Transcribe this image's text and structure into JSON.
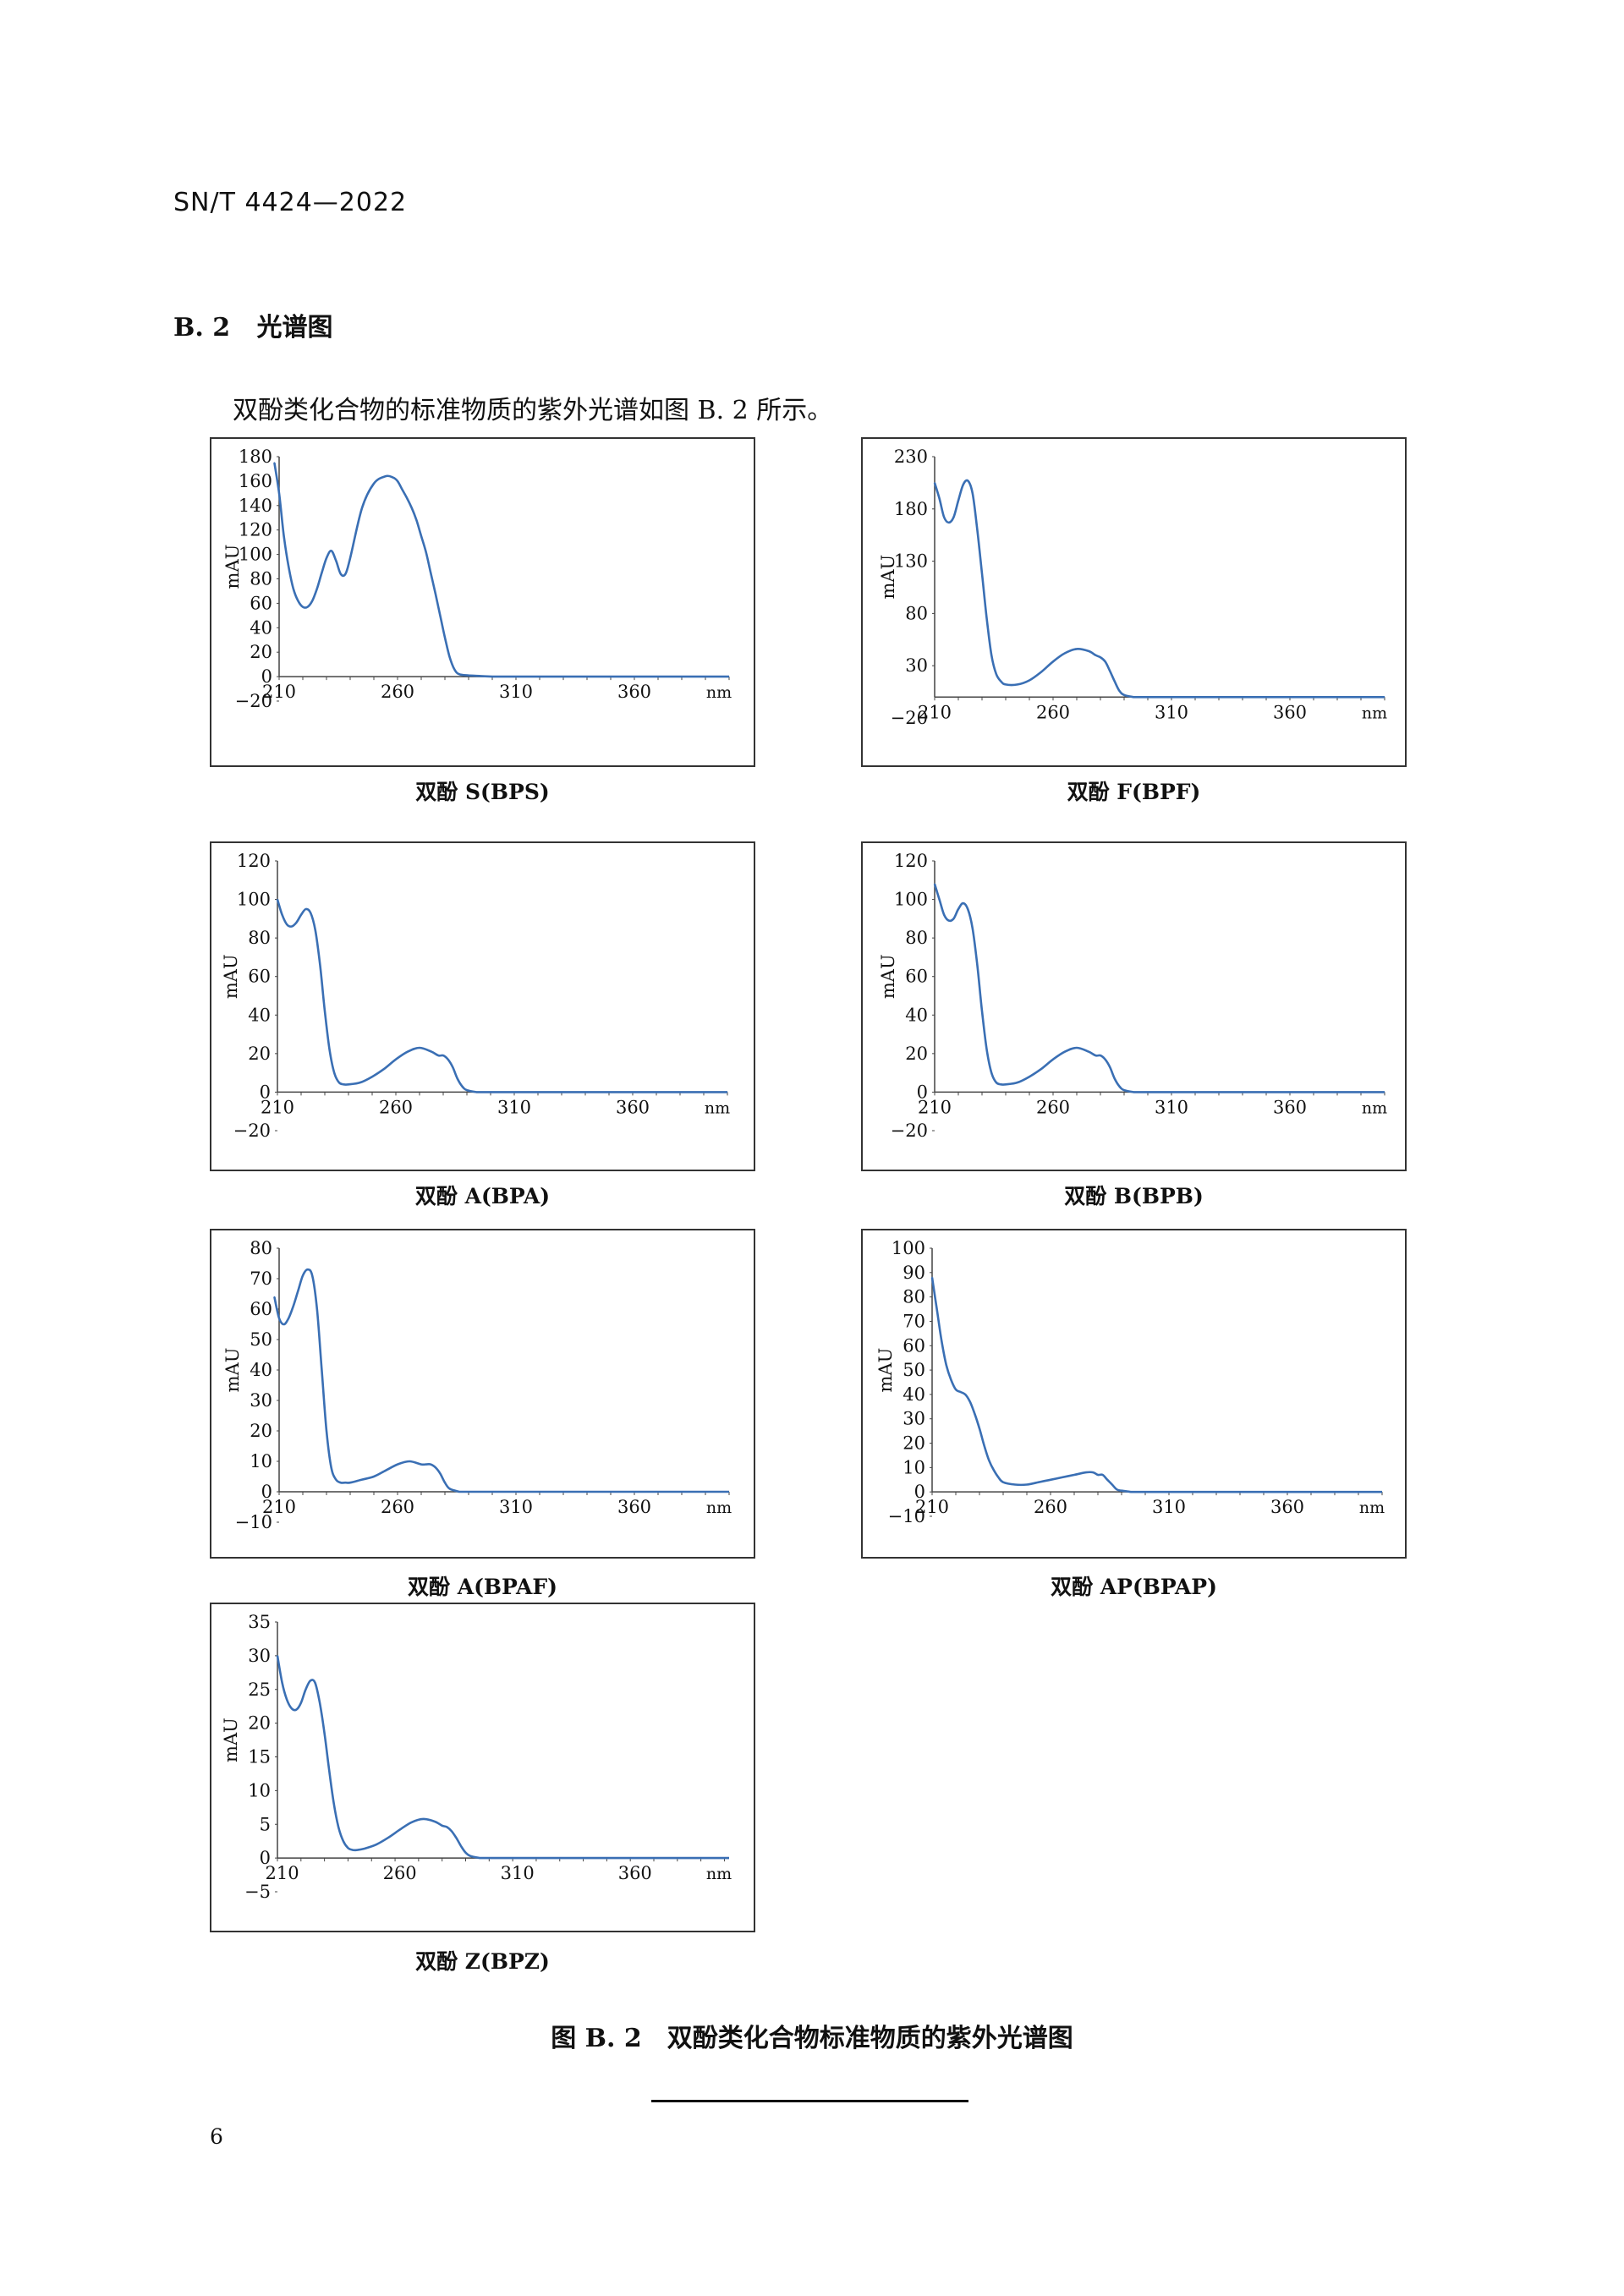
{
  "header": {
    "doc_code": "SN/T 4424—2022"
  },
  "section": {
    "number": "B. 2",
    "title": "光谱图",
    "intro": "双酚类化合物的标准物质的紫外光谱如图 B. 2 所示。"
  },
  "figure": {
    "caption": "图 B. 2　双酚类化合物标准物质的紫外光谱图"
  },
  "footer": {
    "page_number": "6"
  },
  "chart_data": [
    {
      "type": "line",
      "caption": "双酚 S(BPS)",
      "ylabel": "mAU",
      "xunit": "nm",
      "x_ticks": [
        210,
        260,
        310,
        360
      ],
      "y_ticks": [
        -20,
        0,
        20,
        40,
        60,
        80,
        100,
        120,
        140,
        160,
        180
      ],
      "xlim": [
        210,
        400
      ],
      "ylim": [
        -20,
        180
      ],
      "series": [
        {
          "color": "#3a6fb4",
          "x": [
            208,
            210,
            212,
            214,
            216,
            218,
            220,
            222,
            224,
            226,
            228,
            230,
            232,
            234,
            236,
            238,
            240,
            245,
            250,
            255,
            258,
            260,
            262,
            264,
            266,
            268,
            270,
            272,
            274,
            276,
            278,
            280,
            282,
            284,
            286,
            290,
            295,
            300
          ],
          "y": [
            175,
            150,
            115,
            90,
            72,
            62,
            57,
            57,
            62,
            72,
            85,
            97,
            103,
            95,
            84,
            84,
            97,
            138,
            158,
            164,
            163,
            160,
            153,
            146,
            138,
            128,
            115,
            102,
            85,
            68,
            50,
            32,
            16,
            6,
            2,
            1,
            0.5,
            0
          ]
        }
      ]
    },
    {
      "type": "line",
      "caption": "双酚 F(BPF)",
      "ylabel": "mAU",
      "xunit": "nm",
      "x_ticks": [
        210,
        260,
        310,
        360
      ],
      "y_ticks": [
        -20,
        30,
        80,
        130,
        180,
        230
      ],
      "xlim": [
        210,
        400
      ],
      "ylim": [
        -20,
        230
      ],
      "series": [
        {
          "color": "#3a6fb4",
          "x": [
            210,
            212,
            214,
            216,
            218,
            220,
            222,
            224,
            226,
            228,
            230,
            232,
            234,
            236,
            238,
            240,
            245,
            250,
            255,
            260,
            265,
            270,
            275,
            278,
            280,
            282,
            284,
            286,
            288,
            290,
            294
          ],
          "y": [
            205,
            190,
            172,
            167,
            172,
            188,
            203,
            207,
            195,
            160,
            118,
            75,
            40,
            22,
            15,
            12,
            12,
            16,
            24,
            34,
            42,
            46,
            44,
            40,
            38,
            34,
            25,
            15,
            6,
            2,
            0
          ]
        }
      ]
    },
    {
      "type": "line",
      "caption": "双酚 A(BPA)",
      "ylabel": "mAU",
      "xunit": "nm",
      "x_ticks": [
        210,
        260,
        310,
        360
      ],
      "y_ticks": [
        -20,
        0,
        20,
        40,
        60,
        80,
        100,
        120
      ],
      "xlim": [
        210,
        400
      ],
      "ylim": [
        -20,
        120
      ],
      "series": [
        {
          "color": "#3a6fb4",
          "x": [
            210,
            212,
            214,
            216,
            218,
            220,
            222,
            224,
            226,
            228,
            230,
            232,
            234,
            236,
            238,
            240,
            245,
            250,
            255,
            260,
            265,
            270,
            275,
            278,
            280,
            282,
            284,
            286,
            288,
            290,
            294
          ],
          "y": [
            100,
            92,
            87,
            86,
            88,
            92,
            95,
            93,
            84,
            66,
            42,
            22,
            10,
            5,
            4,
            4,
            5,
            8,
            12,
            17,
            21,
            23,
            21,
            19,
            19,
            17,
            13,
            7,
            3,
            1,
            0
          ]
        }
      ]
    },
    {
      "type": "line",
      "caption": "双酚 B(BPB)",
      "ylabel": "mAU",
      "xunit": "nm",
      "x_ticks": [
        210,
        260,
        310,
        360
      ],
      "y_ticks": [
        -20,
        0,
        20,
        40,
        60,
        80,
        100,
        120
      ],
      "xlim": [
        210,
        400
      ],
      "ylim": [
        -20,
        120
      ],
      "series": [
        {
          "color": "#3a6fb4",
          "x": [
            210,
            212,
            214,
            216,
            218,
            220,
            222,
            224,
            226,
            228,
            230,
            232,
            234,
            236,
            238,
            240,
            245,
            250,
            255,
            260,
            265,
            270,
            275,
            278,
            280,
            282,
            284,
            286,
            288,
            290,
            294
          ],
          "y": [
            108,
            100,
            92,
            89,
            90,
            95,
            98,
            95,
            85,
            66,
            42,
            22,
            10,
            5,
            4,
            4,
            5,
            8,
            12,
            17,
            21,
            23,
            21,
            19,
            19,
            17,
            13,
            7,
            3,
            1,
            0
          ]
        }
      ]
    },
    {
      "type": "line",
      "caption": "双酚 A(BPAF)",
      "ylabel": "mAU",
      "xunit": "nm",
      "x_ticks": [
        210,
        260,
        310,
        360
      ],
      "y_ticks": [
        -10,
        0,
        10,
        20,
        30,
        40,
        50,
        60,
        70,
        80
      ],
      "xlim": [
        210,
        400
      ],
      "ylim": [
        -10,
        80
      ],
      "series": [
        {
          "color": "#3a6fb4",
          "x": [
            208,
            210,
            212,
            214,
            216,
            218,
            220,
            222,
            224,
            226,
            228,
            230,
            232,
            234,
            236,
            238,
            240,
            245,
            250,
            255,
            260,
            265,
            270,
            272,
            274,
            276,
            278,
            280,
            282,
            286
          ],
          "y": [
            64,
            57,
            55,
            57,
            61,
            66,
            71,
            73,
            71,
            60,
            40,
            20,
            8,
            4,
            3,
            3,
            3,
            4,
            5,
            7,
            9,
            10,
            9,
            9,
            9,
            8,
            6,
            3,
            1,
            0
          ]
        }
      ]
    },
    {
      "type": "line",
      "caption": "双酚 AP(BPAP)",
      "ylabel": "mAU",
      "xunit": "nm",
      "x_ticks": [
        210,
        260,
        310,
        360
      ],
      "y_ticks": [
        -10,
        0,
        10,
        20,
        30,
        40,
        50,
        60,
        70,
        80,
        90,
        100
      ],
      "xlim": [
        210,
        400
      ],
      "ylim": [
        -10,
        100
      ],
      "series": [
        {
          "color": "#3a6fb4",
          "x": [
            210,
            212,
            214,
            216,
            218,
            220,
            222,
            224,
            226,
            228,
            230,
            232,
            234,
            236,
            238,
            240,
            245,
            250,
            255,
            260,
            265,
            270,
            275,
            278,
            280,
            282,
            284,
            286,
            288,
            290,
            294
          ],
          "y": [
            88,
            75,
            62,
            52,
            46,
            42,
            41,
            40,
            37,
            32,
            26,
            19,
            13,
            9,
            6,
            4,
            3,
            3,
            4,
            5,
            6,
            7,
            8,
            8,
            7,
            7,
            5,
            3,
            1,
            0.5,
            0
          ]
        }
      ]
    },
    {
      "type": "line",
      "caption": "双酚 Z(BPZ)",
      "ylabel": "mAU",
      "xunit": "nm",
      "x_ticks": [
        210,
        260,
        310,
        360
      ],
      "y_ticks": [
        -5,
        0,
        5,
        10,
        15,
        20,
        25,
        30,
        35
      ],
      "xlim": [
        208,
        400
      ],
      "ylim": [
        -5,
        35
      ],
      "series": [
        {
          "color": "#3a6fb4",
          "x": [
            208,
            210,
            212,
            214,
            216,
            218,
            220,
            222,
            224,
            226,
            228,
            230,
            232,
            234,
            236,
            238,
            240,
            242,
            245,
            250,
            255,
            260,
            265,
            270,
            275,
            278,
            280,
            282,
            284,
            286,
            288,
            290,
            294
          ],
          "y": [
            30,
            26,
            23.5,
            22.2,
            22,
            23,
            25,
            26.3,
            26,
            23,
            18.5,
            13,
            8,
            4.5,
            2.5,
            1.5,
            1.2,
            1.2,
            1.4,
            2,
            3,
            4.2,
            5.3,
            5.8,
            5.4,
            4.8,
            4.6,
            4,
            3,
            1.8,
            0.8,
            0.3,
            0
          ]
        }
      ]
    }
  ]
}
